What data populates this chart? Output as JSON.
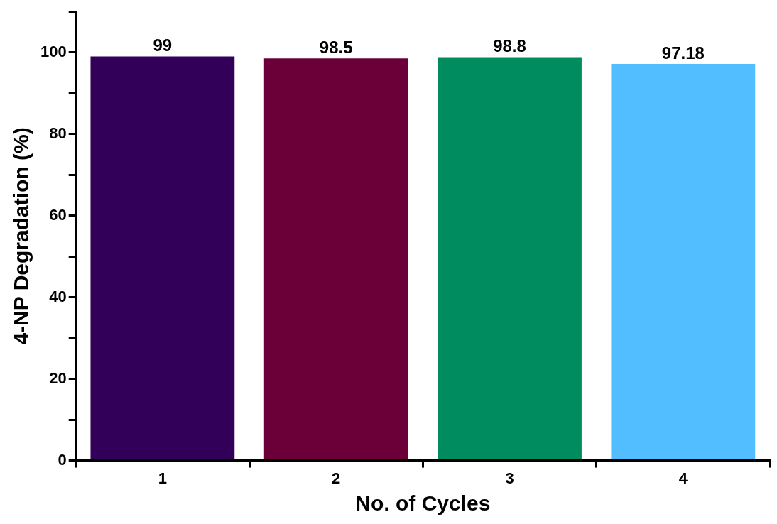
{
  "chart_data": {
    "type": "bar",
    "xlabel": "No. of Cycles",
    "ylabel": "4-NP Degradation (%)",
    "categories": [
      "1",
      "2",
      "3",
      "4"
    ],
    "values": [
      99,
      98.5,
      98.8,
      97.18
    ],
    "colors": [
      "#330059",
      "#6b0039",
      "#008c5e",
      "#52bdff"
    ],
    "ylim": [
      0,
      110
    ],
    "yticks": [
      0,
      {
        "value": 10,
        "label": null
      },
      20,
      {
        "value": 30,
        "label": null
      },
      40,
      {
        "value": 50,
        "label": null
      },
      60,
      {
        "value": 70,
        "label": null
      },
      80,
      {
        "value": 90,
        "label": null
      },
      100,
      {
        "value": 110,
        "label": null
      }
    ],
    "grid": false,
    "legend": false,
    "data_labels": true
  }
}
